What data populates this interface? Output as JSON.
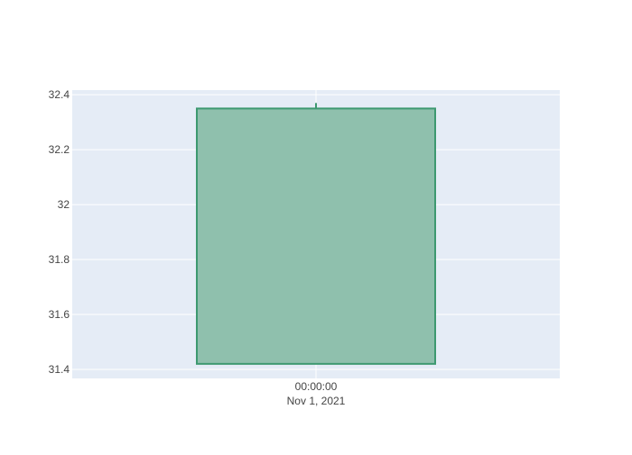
{
  "chart_data": {
    "type": "candlestick",
    "x_tick_labels": [
      {
        "line1": "00:00:00",
        "line2": "Nov 1, 2021"
      }
    ],
    "y_ticks": [
      31.4,
      31.6,
      31.8,
      32,
      32.2,
      32.4
    ],
    "y_tick_labels": [
      "31.4",
      "31.6",
      "31.8",
      "32",
      "32.2",
      "32.4"
    ],
    "ylim": [
      31.367,
      32.417
    ],
    "candles": [
      {
        "date": "2021-11-01 00:00:00",
        "open": 31.42,
        "high": 32.37,
        "low": 31.42,
        "close": 32.35
      }
    ],
    "colors": {
      "increasing_line": "#3d9970",
      "increasing_fill": "#8fc0ad",
      "plot_bg": "#e5ecf6",
      "grid": "#ffffff",
      "text": "#444444"
    },
    "grid": true,
    "legend": "none"
  }
}
